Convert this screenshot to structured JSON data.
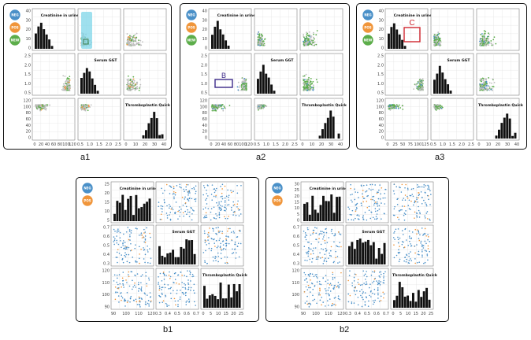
{
  "figures": [
    {
      "id": "a1",
      "caption": "a1",
      "variables": [
        "Creatinine in urine",
        "Serum GGT",
        "Thromboplastin Quick"
      ],
      "buttons": [
        "NEG",
        "POS",
        "NEW"
      ],
      "marker": "",
      "marker_kind": "brush",
      "yticks": {
        "r0": [
          "40",
          "30",
          "20",
          "10",
          "0"
        ],
        "r1": [
          "2.5",
          "2.0",
          "1.5",
          "1.0",
          "0.5"
        ],
        "r2": [
          "120",
          "100",
          "80",
          "60",
          "40",
          "20",
          "0"
        ]
      },
      "xticks": {
        "c0": [
          "0",
          "20",
          "40",
          "60",
          "80",
          "100",
          "120"
        ],
        "c1": [
          "0.5",
          "1.0",
          "1.5",
          "2.0",
          "2.5"
        ],
        "c2": [
          "0",
          "10",
          "20",
          "30",
          "40"
        ]
      }
    },
    {
      "id": "a2",
      "caption": "a2",
      "variables": [
        "Creatinine in urine",
        "Serum GGT",
        "Thromboplastin Quick"
      ],
      "buttons": [
        "NEG",
        "POS",
        "NEW"
      ],
      "marker": "B",
      "marker_kind": "box-blue",
      "yticks": {
        "r0": [
          "40",
          "30",
          "20",
          "10",
          "0"
        ],
        "r1": [
          "2.5",
          "2.0",
          "1.5",
          "1.0",
          "0.5"
        ],
        "r2": [
          "120",
          "100",
          "80",
          "60",
          "40",
          "20",
          "0"
        ]
      },
      "xticks": {
        "c0": [
          "0",
          "20",
          "40",
          "60",
          "80",
          "100",
          "120"
        ],
        "c1": [
          "0.5",
          "1.0",
          "1.5",
          "2.0",
          "2.5"
        ],
        "c2": [
          "0",
          "10",
          "20",
          "30",
          "40"
        ]
      }
    },
    {
      "id": "a3",
      "caption": "a3",
      "variables": [
        "Creatinine in urine",
        "Serum GGT",
        "Thromboplastin Quick"
      ],
      "buttons": [
        "NEG",
        "POS",
        "NEW"
      ],
      "marker": "C",
      "marker_kind": "box-red",
      "yticks": {
        "r0": [
          "40",
          "30",
          "20",
          "10",
          "0"
        ],
        "r1": [
          "2.5",
          "2.0",
          "1.5",
          "1.0",
          "0.5"
        ],
        "r2": [
          "120",
          "100",
          "80",
          "60",
          "40",
          "20",
          "0"
        ]
      },
      "xticks": {
        "c0": [
          "0",
          "25",
          "50",
          "75",
          "100",
          "125"
        ],
        "c1": [
          "0.5",
          "1.0",
          "1.5",
          "2.0",
          "2.5"
        ],
        "c2": [
          "0",
          "10",
          "20",
          "30",
          "40"
        ]
      }
    },
    {
      "id": "b1",
      "caption": "b1",
      "variables": [
        "Creatinine in urine",
        "Serum GGT",
        "Thromboplastin Quick"
      ],
      "buttons": [
        "NEG",
        "POS"
      ],
      "marker": "",
      "marker_kind": "none",
      "yticks": {
        "r0": [
          "25",
          "20",
          "15",
          "10",
          "5"
        ],
        "r1": [
          "0.7",
          "0.6",
          "0.5",
          "0.4",
          "0.3"
        ],
        "r2": [
          "120",
          "110",
          "100",
          "90"
        ]
      },
      "xticks": {
        "c0": [
          "90",
          "100",
          "110",
          "120"
        ],
        "c1": [
          "0.3",
          "0.4",
          "0.5",
          "0.6",
          "0.7"
        ],
        "c2": [
          "0",
          "5",
          "10",
          "15",
          "20",
          "25"
        ]
      }
    },
    {
      "id": "b2",
      "caption": "b2",
      "variables": [
        "Creatinine in urine",
        "Serum GGT",
        "Thromboplastin Quick"
      ],
      "buttons": [
        "NEG",
        "POS"
      ],
      "marker": "",
      "marker_kind": "none",
      "yticks": {
        "r0": [
          "30",
          "25",
          "20",
          "15",
          "10",
          "5",
          "0"
        ],
        "r1": [
          "0.7",
          "0.6",
          "0.5",
          "0.4",
          "0.3"
        ],
        "r2": [
          "120",
          "110",
          "100",
          "90"
        ]
      },
      "xticks": {
        "c0": [
          "90",
          "100",
          "110",
          "120"
        ],
        "c1": [
          "0.3",
          "0.4",
          "0.5",
          "0.6",
          "0.7"
        ],
        "c2": [
          "0",
          "5",
          "10",
          "15",
          "20",
          "25"
        ]
      }
    }
  ],
  "colors": {
    "NEG": "#4a90c8",
    "POS": "#f0953a",
    "NEW": "#5cad4a",
    "gray": "#bdbdbd",
    "hist": "#111111",
    "brush": "#7fd6e8",
    "boxB": "#3c2a8a",
    "boxC": "#d0262f"
  }
}
